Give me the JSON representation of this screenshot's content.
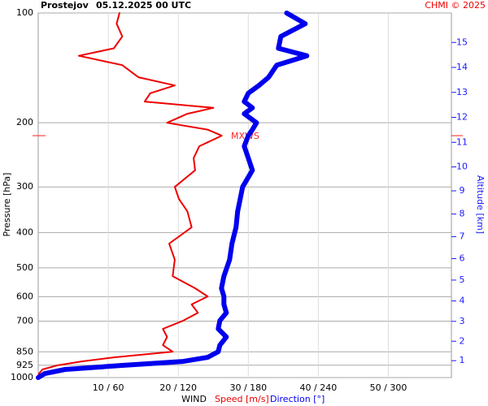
{
  "chart_data": {
    "type": "line",
    "station": "Prostejov",
    "title": "05.12.2025 00 UTC",
    "credit": "CHMI © 2025",
    "ylabel": "Pressure [hPa]",
    "y2label": "Altitude [km]",
    "xlabel": "WIND",
    "ylog": true,
    "grid": true,
    "ylim": [
      100,
      1000
    ],
    "yticks": [
      100,
      200,
      300,
      400,
      500,
      600,
      700,
      850,
      925,
      1000
    ],
    "xlim": [
      0,
      59
    ],
    "x2lim": [
      0,
      354
    ],
    "xticks": [
      {
        "value": 10,
        "label": "10 / 60"
      },
      {
        "value": 20,
        "label": "20 / 120"
      },
      {
        "value": 30,
        "label": "30 / 180"
      },
      {
        "value": 40,
        "label": "40 / 240"
      },
      {
        "value": 50,
        "label": "50 / 300"
      }
    ],
    "y2scale": "standard-atmosphere",
    "y2ticks": [
      1,
      2,
      3,
      4,
      5,
      6,
      7,
      8,
      9,
      10,
      11,
      12,
      13,
      14,
      15
    ],
    "y2color": "#1a1aff",
    "mxws": {
      "label": "MXWS",
      "pressure": 217,
      "color": "#ff2020"
    },
    "pressure": [
      100,
      107,
      116,
      125,
      131,
      139,
      150,
      158,
      166,
      175,
      182,
      189,
      200,
      209,
      217,
      232,
      250,
      270,
      300,
      324,
      350,
      387,
      429,
      475,
      527,
      569,
      599,
      630,
      664,
      698,
      735,
      774,
      815,
      849,
      880,
      903,
      926,
      950,
      975,
      1000
    ],
    "series": [
      {
        "name": "Speed [m/s]",
        "color": "#ee0000",
        "axis": "x",
        "values": [
          11.6,
          11.2,
          12.0,
          10.8,
          5.8,
          12.0,
          14.3,
          19.5,
          16.0,
          15.2,
          25.0,
          21.3,
          18.4,
          24.2,
          26.2,
          23.0,
          22.2,
          22.4,
          19.5,
          20.1,
          21.3,
          21.9,
          18.7,
          19.5,
          19.2,
          22.4,
          24.2,
          21.9,
          22.8,
          20.7,
          17.8,
          18.4,
          17.8,
          19.2,
          10.8,
          6.2,
          2.7,
          0.6,
          0.1,
          0
        ]
      },
      {
        "name": "Direction [°]",
        "color": "#0000ee",
        "axis": "x2",
        "values": [
          212.8,
          228.8,
          207.9,
          205.8,
          230.2,
          204.4,
          197.4,
          189.1,
          180.0,
          176.5,
          183.5,
          176.5,
          187.0,
          183.5,
          180.0,
          176.5,
          180.0,
          183.5,
          175.1,
          173.0,
          170.9,
          169.5,
          166.0,
          164.0,
          159.1,
          157.0,
          159.1,
          159.1,
          161.2,
          155.6,
          154.2,
          161.2,
          155.6,
          154.2,
          145.1,
          124.2,
          71.9,
          23.0,
          5.6,
          0
        ]
      }
    ]
  }
}
